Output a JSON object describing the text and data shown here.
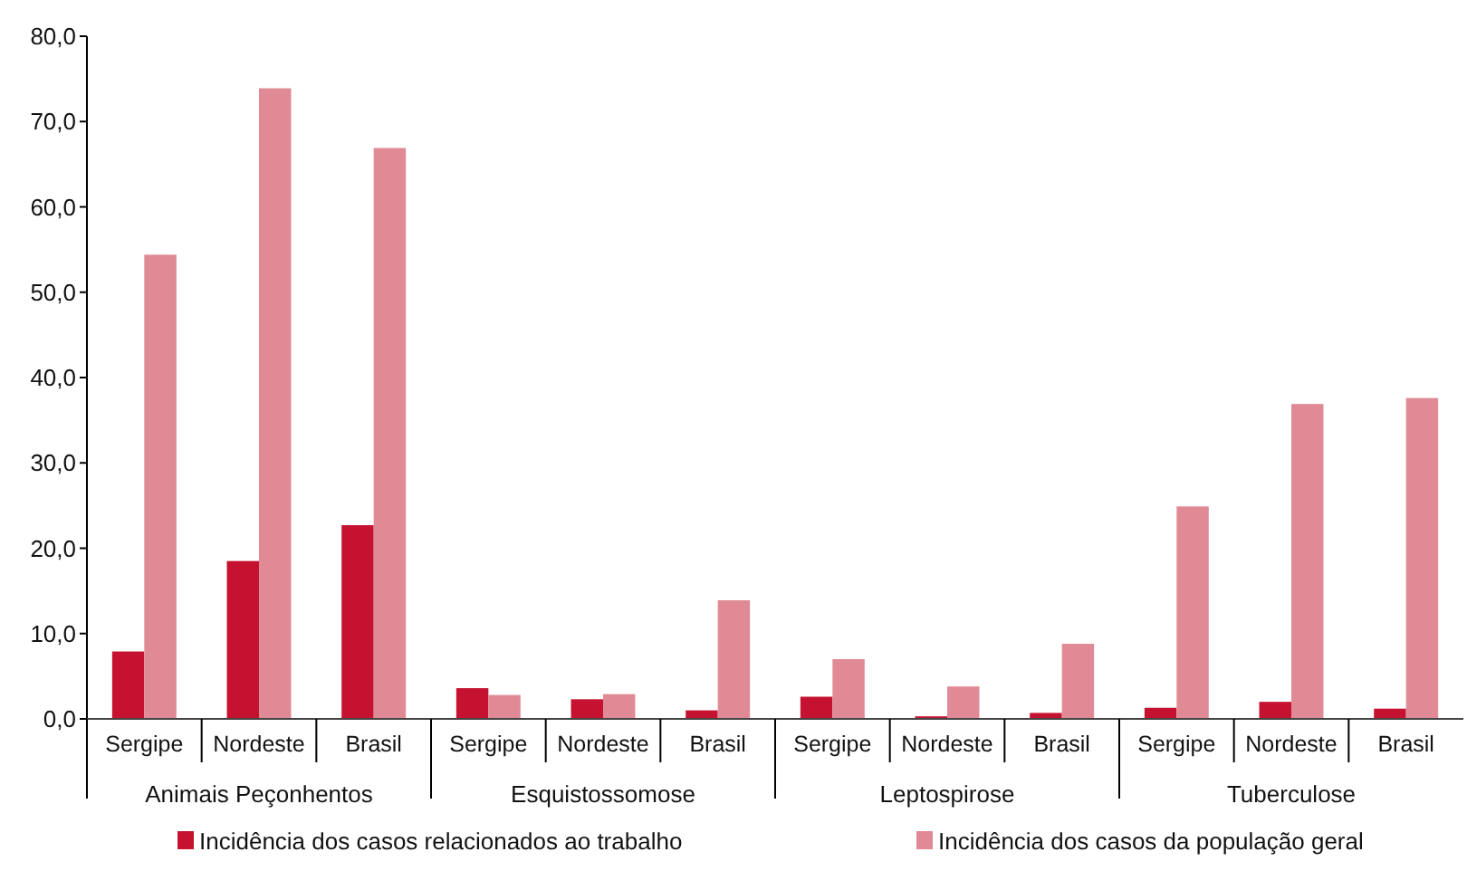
{
  "chart_data": {
    "type": "bar",
    "categories": [
      "Sergipe",
      "Nordeste",
      "Brasil",
      "Sergipe",
      "Nordeste",
      "Brasil",
      "Sergipe",
      "Nordeste",
      "Brasil",
      "Sergipe",
      "Nordeste",
      "Brasil"
    ],
    "series": [
      {
        "name": "Incidência dos casos relacionados ao trabalho",
        "color": "#c41230",
        "values": [
          7.9,
          18.5,
          22.7,
          3.6,
          2.3,
          1.0,
          2.6,
          0.3,
          0.7,
          1.3,
          2.0,
          1.2
        ]
      },
      {
        "name": "Incidência dos casos da população geral",
        "color": "#e08a96",
        "values": [
          54.4,
          73.9,
          66.9,
          2.8,
          2.9,
          13.9,
          7.0,
          3.8,
          8.8,
          24.9,
          36.9,
          37.6
        ]
      }
    ],
    "annotations": [
      "Animais Peçonhentos",
      "Esquistossomose",
      "Leptospirose",
      "Tuberculose"
    ],
    "ylim": [
      0,
      80
    ],
    "yticks": [
      {
        "value": 0,
        "label": "0,0"
      },
      {
        "value": 10,
        "label": "10,0"
      },
      {
        "value": 20,
        "label": "20,0"
      },
      {
        "value": 30,
        "label": "30,0"
      },
      {
        "value": 40,
        "label": "40,0"
      },
      {
        "value": 50,
        "label": "50,0"
      },
      {
        "value": 60,
        "label": "60,0"
      },
      {
        "value": 70,
        "label": "70,0"
      },
      {
        "value": 80,
        "label": "80,0"
      }
    ],
    "grid": false,
    "legend": "bottom"
  }
}
